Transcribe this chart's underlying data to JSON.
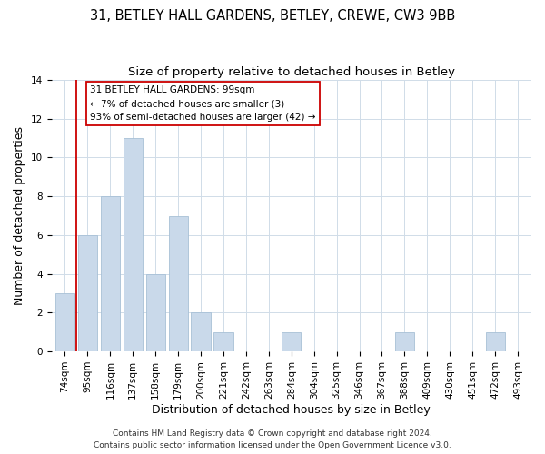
{
  "title": "31, BETLEY HALL GARDENS, BETLEY, CREWE, CW3 9BB",
  "subtitle": "Size of property relative to detached houses in Betley",
  "xlabel": "Distribution of detached houses by size in Betley",
  "ylabel": "Number of detached properties",
  "bins": [
    "74sqm",
    "95sqm",
    "116sqm",
    "137sqm",
    "158sqm",
    "179sqm",
    "200sqm",
    "221sqm",
    "242sqm",
    "263sqm",
    "284sqm",
    "304sqm",
    "325sqm",
    "346sqm",
    "367sqm",
    "388sqm",
    "409sqm",
    "430sqm",
    "451sqm",
    "472sqm",
    "493sqm"
  ],
  "counts": [
    3,
    6,
    8,
    11,
    4,
    7,
    2,
    1,
    0,
    0,
    1,
    0,
    0,
    0,
    0,
    1,
    0,
    0,
    0,
    1,
    0
  ],
  "bar_color": "#c9d9ea",
  "bar_edge_color": "#a8c0d6",
  "highlight_line_color": "#cc0000",
  "annotation_line1": "31 BETLEY HALL GARDENS: 99sqm",
  "annotation_line2": "← 7% of detached houses are smaller (3)",
  "annotation_line3": "93% of semi-detached houses are larger (42) →",
  "annotation_box_edge_color": "#cc0000",
  "ylim": [
    0,
    14
  ],
  "yticks": [
    0,
    2,
    4,
    6,
    8,
    10,
    12,
    14
  ],
  "footer_line1": "Contains HM Land Registry data © Crown copyright and database right 2024.",
  "footer_line2": "Contains public sector information licensed under the Open Government Licence v3.0.",
  "title_fontsize": 10.5,
  "subtitle_fontsize": 9.5,
  "axis_label_fontsize": 9,
  "tick_fontsize": 7.5,
  "annotation_fontsize": 7.5,
  "footer_fontsize": 6.5
}
